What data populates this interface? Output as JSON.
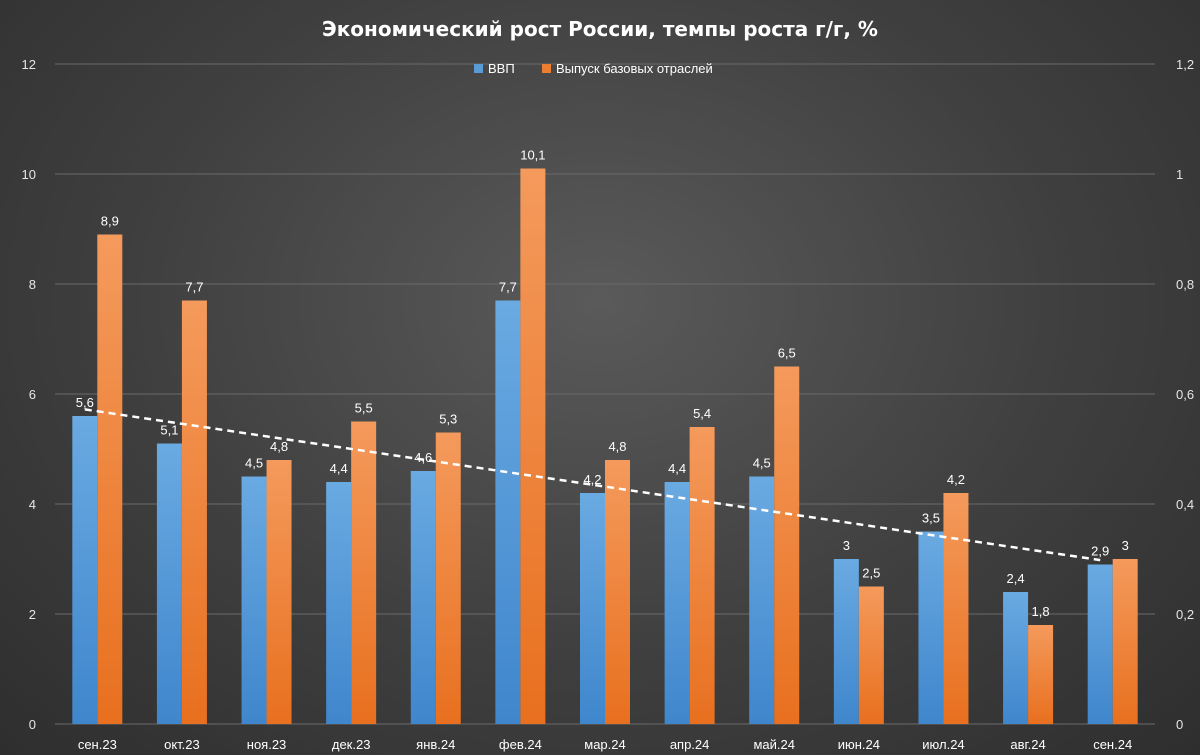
{
  "chart_data": {
    "type": "bar",
    "title": "Экономический рост России, темпы роста г/г, %",
    "categories": [
      "сен.23",
      "окт.23",
      "ноя.23",
      "дек.23",
      "янв.24",
      "фев.24",
      "мар.24",
      "апр.24",
      "май.24",
      "июн.24",
      "июл.24",
      "авг.24",
      "сен.24"
    ],
    "series": [
      {
        "name": "ВВП",
        "values": [
          5.6,
          5.1,
          4.5,
          4.4,
          4.6,
          7.7,
          4.2,
          4.4,
          4.5,
          3,
          3.5,
          2.4,
          2.9
        ],
        "labels": [
          "5,6",
          "5,1",
          "4,5",
          "4,4",
          "4,6",
          "7,7",
          "4,2",
          "4,4",
          "4,5",
          "3",
          "3,5",
          "2,4",
          "2,9"
        ],
        "color": "#5b9bd5"
      },
      {
        "name": "Выпуск базовых отраслей",
        "values": [
          8.9,
          7.7,
          4.8,
          5.5,
          5.3,
          10.1,
          4.8,
          5.4,
          6.5,
          2.5,
          4.2,
          1.8,
          3
        ],
        "labels": [
          "8,9",
          "7,7",
          "4,8",
          "5,5",
          "5,3",
          "10,1",
          "4,8",
          "5,4",
          "6,5",
          "2,5",
          "4,2",
          "1,8",
          "3"
        ],
        "color": "#ed7d31"
      }
    ],
    "trendline": {
      "style": "dashed",
      "color": "#ffffff",
      "start_value": 5.72,
      "end_value": 2.98
    },
    "ylim": [
      0,
      12
    ],
    "yticks": [
      0,
      2,
      4,
      6,
      8,
      10,
      12
    ],
    "y2lim": [
      0,
      1.2
    ],
    "y2ticks": [
      "0",
      "0,2",
      "0,4",
      "0,6",
      "0,8",
      "1",
      "1,2"
    ],
    "xlabel": "",
    "ylabel": "",
    "grid": true,
    "legend": "top-center"
  }
}
